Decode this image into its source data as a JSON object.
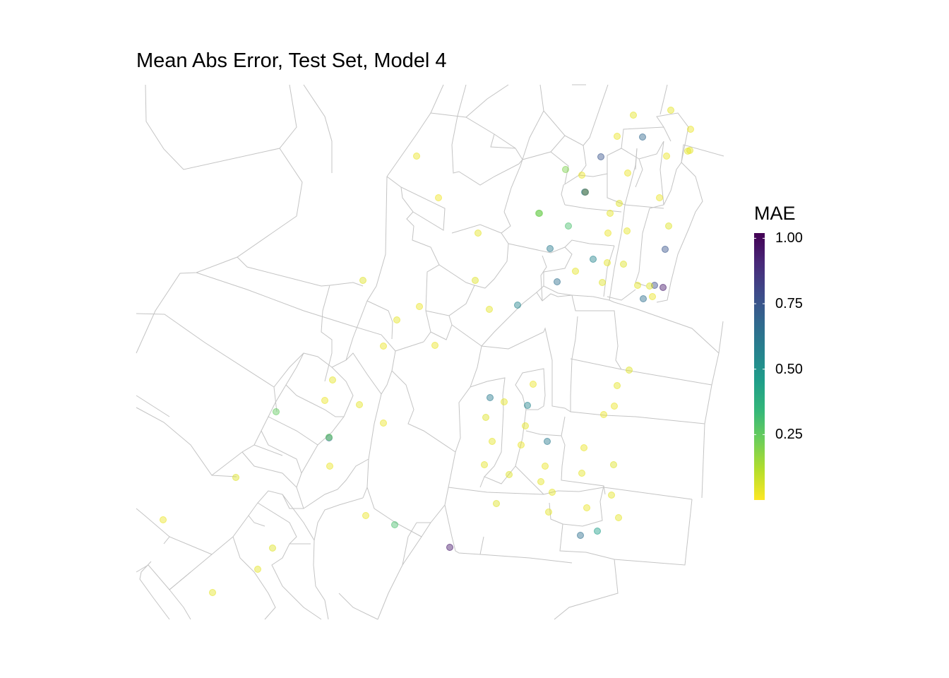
{
  "title": "Mean Abs Error, Test Set, Model 4",
  "legend": {
    "title": "MAE",
    "min": 0.0,
    "max": 1.02,
    "ticks": [
      {
        "value": 1.0,
        "label": "1.00"
      },
      {
        "value": 0.75,
        "label": "0.75"
      },
      {
        "value": 0.5,
        "label": "0.50"
      },
      {
        "value": 0.25,
        "label": "0.25"
      }
    ]
  },
  "colors": {
    "boundary": "#c4c4c4",
    "viridis": [
      "#fde725",
      "#b5de2b",
      "#6ece58",
      "#35b779",
      "#1f9e89",
      "#26828e",
      "#31688e",
      "#3e4989",
      "#482878",
      "#440154"
    ]
  },
  "chart_data": {
    "type": "point-map",
    "title": "Mean Abs Error, Test Set, Model 4",
    "color_variable": "MAE",
    "points": [
      {
        "mae": 0.03
      },
      {
        "mae": 0.02
      },
      {
        "mae": 0.04
      },
      {
        "mae": 0.2
      },
      {
        "mae": 0.03
      },
      {
        "mae": 0.03
      },
      {
        "mae": 0.22
      },
      {
        "mae": 0.04
      },
      {
        "mae": 0.3
      },
      {
        "mae": 0.05
      },
      {
        "mae": 0.03
      },
      {
        "mae": 0.04
      },
      {
        "mae": 0.03
      },
      {
        "mae": 0.05
      },
      {
        "mae": 0.22
      },
      {
        "mae": 0.04
      },
      {
        "mae": 0.03
      },
      {
        "mae": 0.03
      },
      {
        "mae": 0.04
      },
      {
        "mae": 0.03
      },
      {
        "mae": 0.05
      },
      {
        "mae": 0.03
      },
      {
        "mae": 0.55
      },
      {
        "mae": 0.04
      },
      {
        "mae": 0.04
      },
      {
        "mae": 0.05
      },
      {
        "mae": 0.03
      },
      {
        "mae": 0.03
      },
      {
        "mae": 0.04
      },
      {
        "mae": 0.25
      },
      {
        "mae": 0.6
      },
      {
        "mae": 0.03
      },
      {
        "mae": 0.04
      },
      {
        "mae": 0.03
      },
      {
        "mae": 0.65
      },
      {
        "mae": 0.05
      },
      {
        "mae": 0.04
      },
      {
        "mae": 0.03
      },
      {
        "mae": 0.04
      },
      {
        "mae": 0.04
      },
      {
        "mae": 0.25
      },
      {
        "mae": 0.03
      },
      {
        "mae": 0.6
      },
      {
        "mae": 0.04
      },
      {
        "mae": 0.03
      },
      {
        "mae": 0.05
      },
      {
        "mae": 0.03
      },
      {
        "mae": 0.03
      },
      {
        "mae": 0.58
      },
      {
        "mae": 0.04
      },
      {
        "mae": 0.05
      },
      {
        "mae": 0.55
      },
      {
        "mae": 0.04
      },
      {
        "mae": 0.6
      },
      {
        "mae": 0.04
      },
      {
        "mae": 0.05
      },
      {
        "mae": 0.65
      },
      {
        "mae": 0.05
      },
      {
        "mae": 0.04
      },
      {
        "mae": 0.03
      },
      {
        "mae": 0.65
      },
      {
        "mae": 0.03
      },
      {
        "mae": 0.03
      },
      {
        "mae": 0.55
      },
      {
        "mae": 0.04
      },
      {
        "mae": 0.04
      },
      {
        "mae": 0.65
      },
      {
        "mae": 0.05
      },
      {
        "mae": 0.78
      },
      {
        "mae": 0.95
      },
      {
        "mae": 0.04
      },
      {
        "mae": 0.95
      },
      {
        "mae": 0.03
      },
      {
        "mae": 0.04
      },
      {
        "mae": 0.04
      },
      {
        "mae": 0.75
      },
      {
        "mae": 0.05
      },
      {
        "mae": 0.04
      },
      {
        "mae": 0.68
      },
      {
        "mae": 0.05
      },
      {
        "mae": 0.75
      },
      {
        "mae": 0.04
      },
      {
        "mae": 0.05
      },
      {
        "mae": 0.03
      },
      {
        "mae": 0.3
      },
      {
        "mae": 0.03
      },
      {
        "mae": 0.05
      },
      {
        "mae": 0.04
      },
      {
        "mae": 0.04
      },
      {
        "mae": 0.7
      },
      {
        "mae": 0.45
      },
      {
        "mae": 0.04
      },
      {
        "mae": 0.04
      }
    ]
  }
}
